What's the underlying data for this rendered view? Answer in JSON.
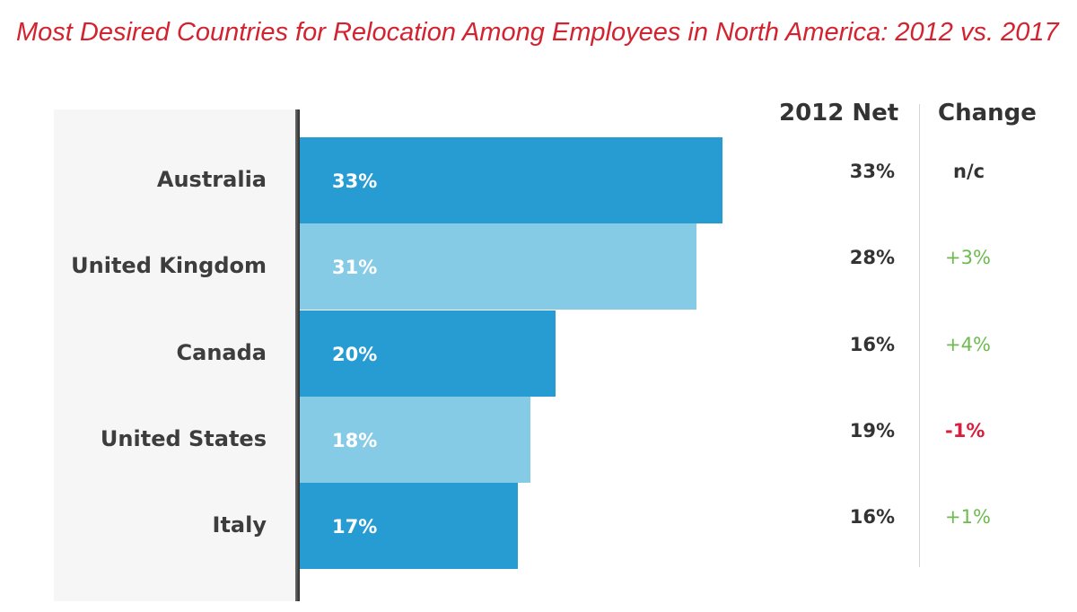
{
  "chart_data": {
    "type": "bar",
    "orientation": "horizontal",
    "title": "Most Desired Countries for Relocation Among Employees in North America: 2012 vs. 2017",
    "categories": [
      "Australia",
      "United Kingdom",
      "Canada",
      "United States",
      "Italy"
    ],
    "values": [
      33,
      31,
      20,
      18,
      17
    ],
    "value_labels": [
      "33%",
      "31%",
      "20%",
      "18%",
      "17%"
    ],
    "xlim": [
      0,
      33
    ],
    "grid": false,
    "table_columns": {
      "net_header": "2012 Net",
      "change_header": "Change",
      "net_2012": [
        "33%",
        "28%",
        "16%",
        "19%",
        "16%"
      ],
      "change": [
        "n/c",
        "+3%",
        "+4%",
        "-1%",
        "+1%"
      ]
    }
  },
  "colors": {
    "title": "#d42330",
    "bar_dark": "#279cd3",
    "bar_light": "#86cbe6",
    "positive": "#6dbb4f",
    "negative": "#d8203e",
    "neutral": "#333333"
  }
}
